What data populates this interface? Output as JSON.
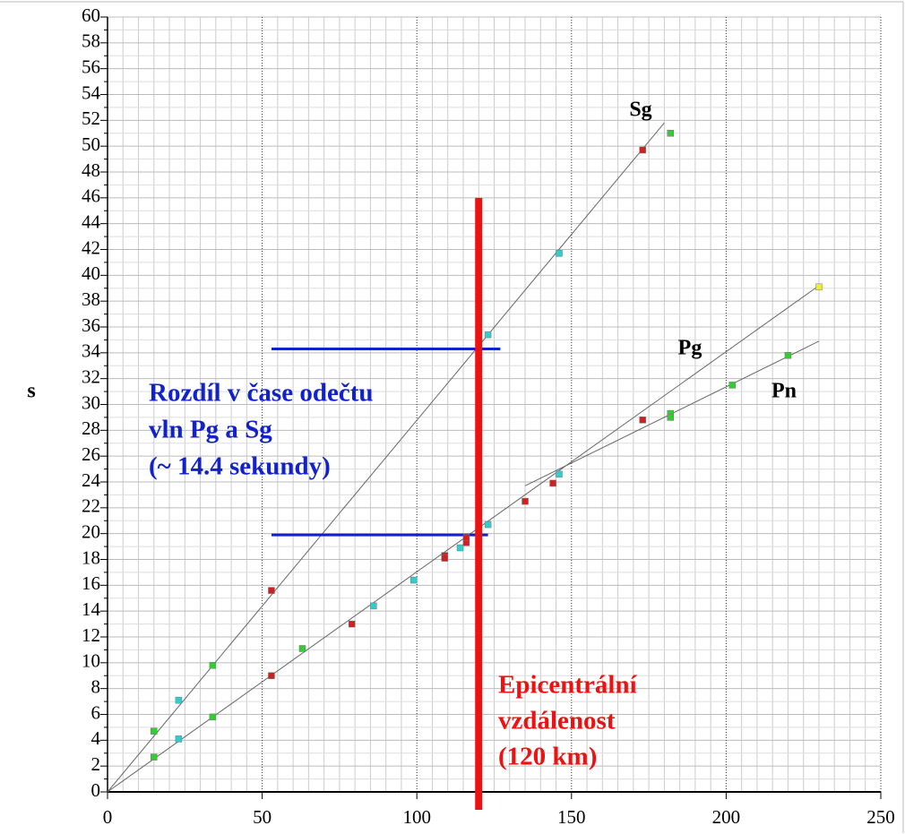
{
  "chart_data": {
    "type": "scatter",
    "y_label": "s",
    "xlim": [
      0,
      250
    ],
    "xticks": [
      0,
      50,
      100,
      150,
      200,
      250
    ],
    "ylim": [
      0,
      60
    ],
    "yticks": [
      0,
      2,
      4,
      6,
      8,
      10,
      12,
      14,
      16,
      18,
      20,
      22,
      24,
      26,
      28,
      30,
      32,
      34,
      36,
      38,
      40,
      42,
      44,
      46,
      48,
      50,
      52,
      54,
      56,
      58,
      60
    ],
    "grid": true,
    "series": [
      {
        "color": "#33cc33",
        "x": [
          15,
          34,
          182,
          15,
          34,
          63,
          182,
          182,
          202,
          220
        ],
        "values": [
          4.7,
          9.8,
          51.0,
          2.7,
          5.8,
          11.1,
          29.3,
          29.0,
          31.5,
          33.8
        ]
      },
      {
        "color": "#33cccc",
        "x": [
          23,
          123,
          146,
          23,
          86,
          99,
          114,
          123,
          146
        ],
        "values": [
          7.1,
          35.4,
          41.7,
          4.1,
          14.4,
          16.4,
          18.9,
          20.7,
          24.6
        ]
      },
      {
        "color": "#cc2222",
        "x": [
          53,
          173,
          53,
          79,
          109,
          109,
          116,
          116,
          135,
          144,
          173
        ],
        "values": [
          15.6,
          49.7,
          9.0,
          13.0,
          18.3,
          18.1,
          19.3,
          19.7,
          22.5,
          23.9,
          28.8
        ]
      },
      {
        "color": "#eeee33",
        "x": [
          230
        ],
        "values": [
          39.1
        ]
      }
    ],
    "lines": [
      {
        "label": "Sg",
        "x": [
          0,
          180
        ],
        "values": [
          0,
          51.8
        ]
      },
      {
        "label": "Pg",
        "x": [
          0,
          230
        ],
        "values": [
          0,
          39.2
        ]
      },
      {
        "label": "Pn",
        "x": [
          135,
          230
        ],
        "values": [
          23.7,
          34.9
        ]
      }
    ],
    "epicenter_line": {
      "color": "#ee1111",
      "x": 120,
      "y": [
        0,
        46
      ]
    },
    "difference_lines": [
      {
        "color": "#1122cc",
        "x": [
          53,
          127
        ],
        "y": 34.3
      },
      {
        "color": "#1122cc",
        "x": [
          53,
          123
        ],
        "y": 19.9
      }
    ],
    "difference_text": [
      "Rozdíl v čase odečtu",
      "vln Pg a Sg",
      "(~ 14.4 sekundy)"
    ],
    "epicenter_text": [
      "Epicentrální",
      "vzdálenost",
      "(120 km)"
    ]
  }
}
